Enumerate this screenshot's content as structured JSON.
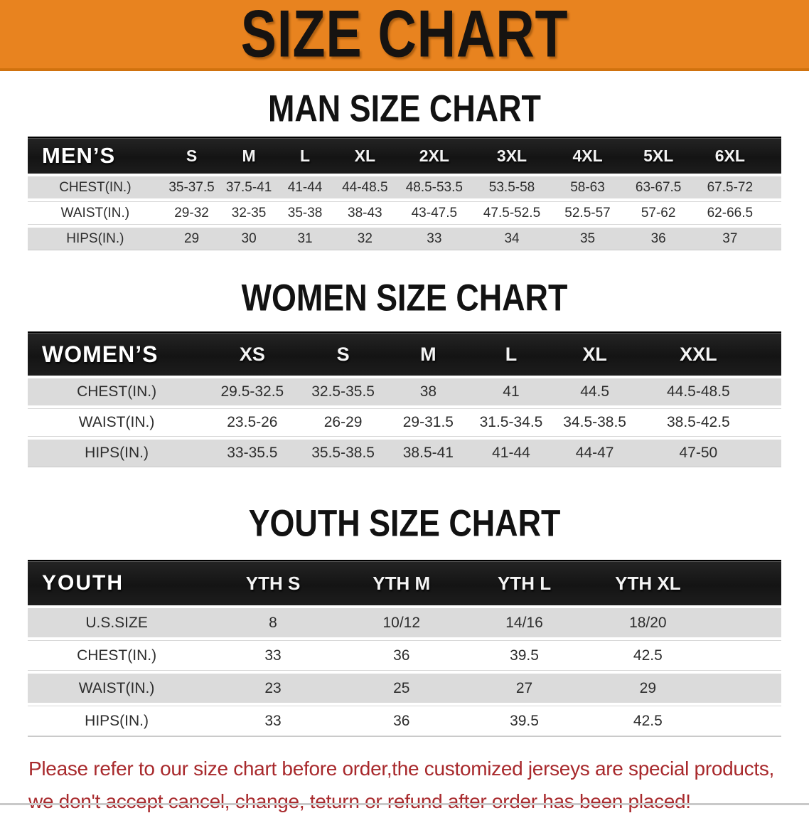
{
  "banner": {
    "title": "SIZE CHART"
  },
  "colors": {
    "banner_orange": "#E8831F",
    "banner_edge": "#D0720E",
    "header_black": "#1A1A1A",
    "row_gray": "#DBDBDB",
    "disclaimer_red": "#A8292C"
  },
  "sections": [
    {
      "heading": "MAN SIZE CHART",
      "table": {
        "header": {
          "label": "MEN’S",
          "columns": [
            "S",
            "M",
            "L",
            "XL",
            "2XL",
            "3XL",
            "4XL",
            "5XL",
            "6XL"
          ]
        },
        "rows": [
          {
            "label": "CHEST(IN.)",
            "values": [
              "35-37.5",
              "37.5-41",
              "41-44",
              "44-48.5",
              "48.5-53.5",
              "53.5-58",
              "58-63",
              "63-67.5",
              "67.5-72"
            ]
          },
          {
            "label": "WAIST(IN.)",
            "values": [
              "29-32",
              "32-35",
              "35-38",
              "38-43",
              "43-47.5",
              "47.5-52.5",
              "52.5-57",
              "57-62",
              "62-66.5"
            ]
          },
          {
            "label": "HIPS(IN.)",
            "values": [
              "29",
              "30",
              "31",
              "32",
              "33",
              "34",
              "35",
              "36",
              "37"
            ]
          }
        ]
      }
    },
    {
      "heading": "WOMEN SIZE CHART",
      "table": {
        "header": {
          "label": "WOMEN’S",
          "columns": [
            "XS",
            "S",
            "M",
            "L",
            "XL",
            "XXL"
          ]
        },
        "rows": [
          {
            "label": "CHEST(IN.)",
            "values": [
              "29.5-32.5",
              "32.5-35.5",
              "38",
              "41",
              "44.5",
              "44.5-48.5"
            ]
          },
          {
            "label": "WAIST(IN.)",
            "values": [
              "23.5-26",
              "26-29",
              "29-31.5",
              "31.5-34.5",
              "34.5-38.5",
              "38.5-42.5"
            ]
          },
          {
            "label": "HIPS(IN.)",
            "values": [
              "33-35.5",
              "35.5-38.5",
              "38.5-41",
              "41-44",
              "44-47",
              "47-50"
            ]
          }
        ]
      }
    },
    {
      "heading": "YOUTH SIZE CHART",
      "table": {
        "header": {
          "label": "YOUTH",
          "columns": [
            "YTH S",
            "YTH M",
            "YTH L",
            "YTH XL"
          ]
        },
        "rows": [
          {
            "label": "U.S.SIZE",
            "values": [
              "8",
              "10/12",
              "14/16",
              "18/20"
            ]
          },
          {
            "label": "CHEST(IN.)",
            "values": [
              "33",
              "36",
              "39.5",
              "42.5"
            ]
          },
          {
            "label": "WAIST(IN.)",
            "values": [
              "23",
              "25",
              "27",
              "29"
            ]
          },
          {
            "label": "HIPS(IN.)",
            "values": [
              "33",
              "36",
              "39.5",
              "42.5"
            ]
          }
        ]
      }
    }
  ],
  "footer": {
    "line1": "Please refer to our size chart before order,the customized jerseys are special products,",
    "line2": "we don't accept cancel, change, teturn or refund after order has been placed!"
  }
}
